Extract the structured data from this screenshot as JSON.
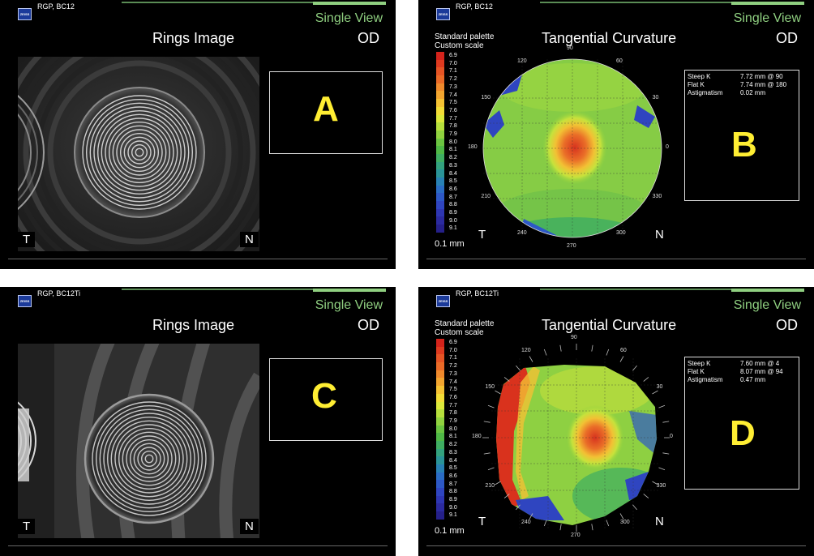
{
  "panels": [
    {
      "caption": "RGP, BC12",
      "view": "Single View",
      "title": "Rings Image",
      "eye": "OD",
      "letter": "A",
      "temporal": "T",
      "nasal": "N"
    },
    {
      "caption": "RGP, BC12",
      "view": "Single View",
      "title": "Tangential Curvature",
      "eye": "OD",
      "letter": "B",
      "temporal": "T",
      "nasal": "N",
      "palette": [
        "Standard palette",
        "Custom scale"
      ],
      "unit": "0.1 mm",
      "stats": [
        {
          "label": "Steep K",
          "value": "7.72 mm @ 90"
        },
        {
          "label": "Flat K",
          "value": "7.74 mm @ 180"
        },
        {
          "label": "Astigmatism",
          "value": "0.02 mm"
        }
      ]
    },
    {
      "caption": "RGP, BC12Ti",
      "view": "Single View",
      "title": "Rings Image",
      "eye": "OD",
      "letter": "C",
      "temporal": "T",
      "nasal": "N"
    },
    {
      "caption": "RGP, BC12Ti",
      "view": "Single View",
      "title": "Tangential Curvature",
      "eye": "OD",
      "letter": "D",
      "temporal": "T",
      "nasal": "N",
      "palette": [
        "Standard palette",
        "Custom scale"
      ],
      "unit": "0.1 mm",
      "stats": [
        {
          "label": "Steep K",
          "value": "7.60 mm @ 4"
        },
        {
          "label": "Flat K",
          "value": "8.07 mm @ 94"
        },
        {
          "label": "Astigmatism",
          "value": "0.47 mm"
        }
      ]
    }
  ],
  "scale_values": [
    "6.9",
    "7.0",
    "7.1",
    "7.2",
    "7.3",
    "7.4",
    "7.5",
    "7.6",
    "7.7",
    "7.8",
    "7.9",
    "8.0",
    "8.1",
    "8.2",
    "8.3",
    "8.4",
    "8.5",
    "8.6",
    "8.7",
    "8.8",
    "8.9",
    "9.0",
    "9.1"
  ],
  "scale_colors": [
    "#d4231b",
    "#de3a1f",
    "#e55424",
    "#ea6a27",
    "#ef8a2c",
    "#f2a52f",
    "#f5c233",
    "#f2dc36",
    "#dce83a",
    "#b6df3c",
    "#90d23f",
    "#6bc441",
    "#4fb846",
    "#3fae62",
    "#33a27e",
    "#2a9498",
    "#2881b4",
    "#2a6cc4",
    "#2d58c6",
    "#2f45c0",
    "#2e36b2",
    "#2b2a9f",
    "#25208a"
  ],
  "degree_labels": [
    "90",
    "60",
    "30",
    "0",
    "330",
    "300",
    "270",
    "240",
    "210",
    "180",
    "150",
    "120"
  ],
  "logo_text": "ZEISS"
}
